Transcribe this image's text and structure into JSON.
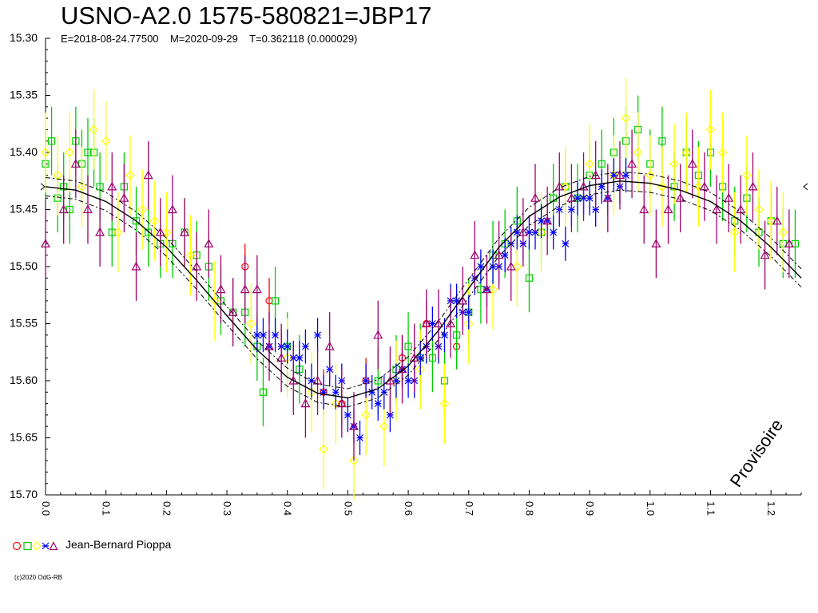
{
  "header": {
    "title": "USNO-A2.0 1575-580821=JBP17",
    "subtitle": "E=2018-08-24.77500    M=2020-09-29    T=0.362118 (0.000029)"
  },
  "legend": {
    "observer": "Jean-Bernard Pioppa"
  },
  "footer": {
    "copyright": "(c)2020 OdG-RB"
  },
  "chart_data": {
    "type": "scatter",
    "title": "USNO-A2.0 1575-580821=JBP17",
    "xlabel": "",
    "ylabel": "",
    "xlim": [
      0.0,
      1.25
    ],
    "ylim": [
      15.7,
      15.3
    ],
    "y_inverted": true,
    "x_ticks": [
      "0.0",
      "0.1",
      "0.2",
      "0.3",
      "0.4",
      "0.5",
      "0.6",
      "0.7",
      "0.8",
      "0.9",
      "1.0",
      "1.1",
      "1.2"
    ],
    "y_ticks": [
      "15.30",
      "15.35",
      "15.40",
      "15.45",
      "15.50",
      "15.55",
      "15.60",
      "15.65",
      "15.70"
    ],
    "annotation": "Provisoire",
    "mean_marker": 15.43,
    "fit": {
      "phase": [
        0.0,
        0.05,
        0.1,
        0.15,
        0.2,
        0.25,
        0.3,
        0.35,
        0.4,
        0.45,
        0.5,
        0.55,
        0.6,
        0.65,
        0.7,
        0.75,
        0.8,
        0.85,
        0.9,
        0.95,
        1.0,
        1.05,
        1.1,
        1.15,
        1.2,
        1.25
      ],
      "mag": [
        15.43,
        15.433,
        15.443,
        15.46,
        15.483,
        15.512,
        15.543,
        15.573,
        15.597,
        15.611,
        15.615,
        15.607,
        15.587,
        15.556,
        15.519,
        15.483,
        15.456,
        15.439,
        15.429,
        15.425,
        15.427,
        15.433,
        15.443,
        15.46,
        15.483,
        15.51
      ],
      "band": 0.008
    },
    "series": [
      {
        "name": "",
        "marker": "circle",
        "color": "#ff0000",
        "size": 4,
        "x": [
          0.33,
          0.37,
          0.46,
          0.49,
          0.53,
          0.59,
          0.63,
          0.68
        ],
        "y": [
          15.5,
          15.53,
          15.61,
          15.62,
          15.6,
          15.58,
          15.55,
          15.57
        ],
        "err": [
          0.02,
          0.02,
          0.02,
          0.02,
          0.02,
          0.02,
          0.02,
          0.02
        ]
      },
      {
        "name": "",
        "marker": "square",
        "color": "#00cc00",
        "size": 5,
        "x": [
          0.0,
          0.01,
          0.02,
          0.03,
          0.04,
          0.05,
          0.06,
          0.07,
          0.08,
          0.09,
          0.11,
          0.13,
          0.15,
          0.17,
          0.19,
          0.21,
          0.23,
          0.25,
          0.27,
          0.29,
          0.31,
          0.33,
          0.35,
          0.36,
          0.38,
          0.4,
          0.42,
          0.55,
          0.58,
          0.6,
          0.62,
          0.64,
          0.66,
          0.68,
          0.7,
          0.72,
          0.74,
          0.76,
          0.78,
          0.8,
          0.82,
          0.84,
          0.86,
          0.88,
          0.9,
          0.92,
          0.94,
          0.96,
          0.98,
          1.0,
          1.02,
          1.04,
          1.06,
          1.08,
          1.1,
          1.12,
          1.14,
          1.16,
          1.18,
          1.2,
          1.22,
          1.24
        ],
        "y": [
          15.41,
          15.39,
          15.44,
          15.43,
          15.45,
          15.39,
          15.41,
          15.4,
          15.4,
          15.43,
          15.47,
          15.43,
          15.46,
          15.47,
          15.48,
          15.48,
          15.47,
          15.49,
          15.5,
          15.53,
          15.54,
          15.54,
          15.57,
          15.61,
          15.53,
          15.57,
          15.59,
          15.6,
          15.59,
          15.57,
          15.58,
          15.58,
          15.6,
          15.56,
          15.54,
          15.52,
          15.49,
          15.48,
          15.46,
          15.51,
          15.47,
          15.44,
          15.43,
          15.44,
          15.42,
          15.41,
          15.4,
          15.39,
          15.38,
          15.41,
          15.39,
          15.43,
          15.4,
          15.42,
          15.4,
          15.43,
          15.46,
          15.44,
          15.47,
          15.46,
          15.48,
          15.48
        ],
        "err": [
          0.03,
          0.03,
          0.03,
          0.03,
          0.03,
          0.03,
          0.03,
          0.03,
          0.03,
          0.03,
          0.03,
          0.03,
          0.03,
          0.03,
          0.03,
          0.03,
          0.03,
          0.03,
          0.03,
          0.03,
          0.03,
          0.03,
          0.03,
          0.03,
          0.03,
          0.03,
          0.03,
          0.03,
          0.03,
          0.03,
          0.03,
          0.03,
          0.03,
          0.03,
          0.03,
          0.03,
          0.03,
          0.03,
          0.03,
          0.03,
          0.03,
          0.03,
          0.03,
          0.03,
          0.03,
          0.03,
          0.03,
          0.03,
          0.03,
          0.03,
          0.03,
          0.03,
          0.03,
          0.03,
          0.03,
          0.03,
          0.03,
          0.03,
          0.03,
          0.03,
          0.03,
          0.03
        ]
      },
      {
        "name": "",
        "marker": "diamond",
        "color": "#ffff00",
        "size": 5,
        "x": [
          0.0,
          0.02,
          0.04,
          0.06,
          0.08,
          0.1,
          0.12,
          0.14,
          0.16,
          0.18,
          0.2,
          0.24,
          0.28,
          0.34,
          0.4,
          0.44,
          0.46,
          0.48,
          0.51,
          0.53,
          0.56,
          0.58,
          0.62,
          0.66,
          0.7,
          0.74,
          0.78,
          0.82,
          0.86,
          0.9,
          0.94,
          0.96,
          0.98,
          1.0,
          1.02,
          1.04,
          1.06,
          1.08,
          1.1,
          1.12,
          1.14,
          1.16,
          1.18,
          1.2,
          1.22
        ],
        "y": [
          15.4,
          15.42,
          15.4,
          15.43,
          15.38,
          15.39,
          15.47,
          15.42,
          15.45,
          15.46,
          15.47,
          15.49,
          15.53,
          15.55,
          15.58,
          15.61,
          15.66,
          15.62,
          15.67,
          15.63,
          15.64,
          15.6,
          15.59,
          15.62,
          15.55,
          15.52,
          15.5,
          15.47,
          15.43,
          15.41,
          15.42,
          15.37,
          15.4,
          15.42,
          15.43,
          15.41,
          15.4,
          15.43,
          15.38,
          15.4,
          15.47,
          15.42,
          15.45,
          15.46,
          15.47
        ],
        "err": [
          0.035,
          0.035,
          0.035,
          0.035,
          0.035,
          0.035,
          0.035,
          0.035,
          0.035,
          0.035,
          0.035,
          0.035,
          0.035,
          0.035,
          0.035,
          0.035,
          0.035,
          0.035,
          0.035,
          0.035,
          0.035,
          0.035,
          0.035,
          0.035,
          0.035,
          0.035,
          0.035,
          0.035,
          0.035,
          0.035,
          0.035,
          0.035,
          0.035,
          0.035,
          0.035,
          0.035,
          0.035,
          0.035,
          0.035,
          0.035,
          0.035,
          0.035,
          0.035,
          0.035,
          0.035
        ]
      },
      {
        "name": "",
        "marker": "star",
        "color": "#0000ff",
        "size": 4,
        "x": [
          0.35,
          0.36,
          0.37,
          0.38,
          0.39,
          0.4,
          0.41,
          0.42,
          0.43,
          0.44,
          0.45,
          0.46,
          0.47,
          0.48,
          0.49,
          0.5,
          0.51,
          0.52,
          0.53,
          0.54,
          0.55,
          0.56,
          0.57,
          0.58,
          0.59,
          0.6,
          0.61,
          0.62,
          0.63,
          0.64,
          0.65,
          0.66,
          0.67,
          0.68,
          0.69,
          0.7,
          0.71,
          0.72,
          0.73,
          0.74,
          0.75,
          0.76,
          0.77,
          0.78,
          0.79,
          0.8,
          0.81,
          0.82,
          0.83,
          0.84,
          0.85,
          0.86,
          0.87,
          0.88,
          0.89,
          0.9,
          0.91,
          0.92,
          0.93,
          0.94,
          0.95,
          0.96
        ],
        "y": [
          15.56,
          15.56,
          15.57,
          15.56,
          15.57,
          15.57,
          15.58,
          15.58,
          15.57,
          15.6,
          15.56,
          15.61,
          15.59,
          15.61,
          15.6,
          15.63,
          15.64,
          15.65,
          15.6,
          15.61,
          15.62,
          15.61,
          15.63,
          15.6,
          15.59,
          15.6,
          15.6,
          15.58,
          15.57,
          15.55,
          15.57,
          15.56,
          15.53,
          15.53,
          15.54,
          15.54,
          15.51,
          15.5,
          15.52,
          15.5,
          15.5,
          15.49,
          15.48,
          15.47,
          15.48,
          15.47,
          15.47,
          15.46,
          15.46,
          15.47,
          15.45,
          15.48,
          15.45,
          15.44,
          15.44,
          15.44,
          15.45,
          15.43,
          15.44,
          15.42,
          15.43,
          15.42
        ],
        "err": [
          0.015,
          0.015,
          0.015,
          0.015,
          0.015,
          0.015,
          0.015,
          0.015,
          0.015,
          0.015,
          0.015,
          0.015,
          0.015,
          0.015,
          0.015,
          0.015,
          0.015,
          0.015,
          0.015,
          0.015,
          0.015,
          0.015,
          0.015,
          0.015,
          0.015,
          0.015,
          0.015,
          0.015,
          0.015,
          0.015,
          0.015,
          0.015,
          0.015,
          0.015,
          0.015,
          0.015,
          0.015,
          0.015,
          0.015,
          0.015,
          0.015,
          0.015,
          0.015,
          0.015,
          0.015,
          0.015,
          0.015,
          0.015,
          0.015,
          0.015,
          0.015,
          0.015,
          0.015,
          0.015,
          0.015,
          0.015,
          0.015,
          0.015,
          0.015,
          0.015,
          0.015,
          0.015
        ]
      },
      {
        "name": "",
        "marker": "triangle",
        "color": "#a0006e",
        "size": 5,
        "x": [
          0.0,
          0.03,
          0.05,
          0.07,
          0.09,
          0.11,
          0.13,
          0.15,
          0.17,
          0.19,
          0.21,
          0.23,
          0.25,
          0.27,
          0.29,
          0.31,
          0.33,
          0.35,
          0.37,
          0.39,
          0.41,
          0.43,
          0.45,
          0.47,
          0.49,
          0.51,
          0.55,
          0.57,
          0.59,
          0.61,
          0.63,
          0.65,
          0.67,
          0.69,
          0.71,
          0.73,
          0.75,
          0.77,
          0.79,
          0.81,
          0.83,
          0.85,
          0.87,
          0.89,
          0.91,
          0.93,
          0.95,
          0.97,
          0.99,
          1.01,
          1.03,
          1.05,
          1.07,
          1.09,
          1.11,
          1.13,
          1.15,
          1.17,
          1.19,
          1.21,
          1.23
        ],
        "y": [
          15.48,
          15.45,
          15.41,
          15.45,
          15.47,
          15.43,
          15.44,
          15.5,
          15.42,
          15.47,
          15.45,
          15.47,
          15.5,
          15.48,
          15.52,
          15.54,
          15.52,
          15.52,
          15.57,
          15.58,
          15.6,
          15.62,
          15.6,
          15.57,
          15.62,
          15.64,
          15.56,
          15.6,
          15.59,
          15.58,
          15.55,
          15.55,
          15.55,
          15.53,
          15.49,
          15.52,
          15.49,
          15.5,
          15.47,
          15.44,
          15.46,
          15.43,
          15.44,
          15.43,
          15.42,
          15.44,
          15.42,
          15.41,
          15.45,
          15.48,
          15.45,
          15.44,
          15.41,
          15.43,
          15.45,
          15.44,
          15.45,
          15.43,
          15.49,
          15.46,
          15.48
        ],
        "err": [
          0.03,
          0.03,
          0.03,
          0.03,
          0.03,
          0.03,
          0.03,
          0.03,
          0.03,
          0.03,
          0.03,
          0.03,
          0.03,
          0.03,
          0.03,
          0.03,
          0.03,
          0.03,
          0.03,
          0.03,
          0.03,
          0.03,
          0.03,
          0.03,
          0.03,
          0.03,
          0.03,
          0.03,
          0.03,
          0.03,
          0.03,
          0.03,
          0.03,
          0.03,
          0.03,
          0.03,
          0.03,
          0.03,
          0.03,
          0.03,
          0.03,
          0.03,
          0.03,
          0.03,
          0.03,
          0.03,
          0.03,
          0.03,
          0.03,
          0.03,
          0.03,
          0.03,
          0.03,
          0.03,
          0.03,
          0.03,
          0.03,
          0.03,
          0.03,
          0.03,
          0.03
        ]
      }
    ]
  }
}
